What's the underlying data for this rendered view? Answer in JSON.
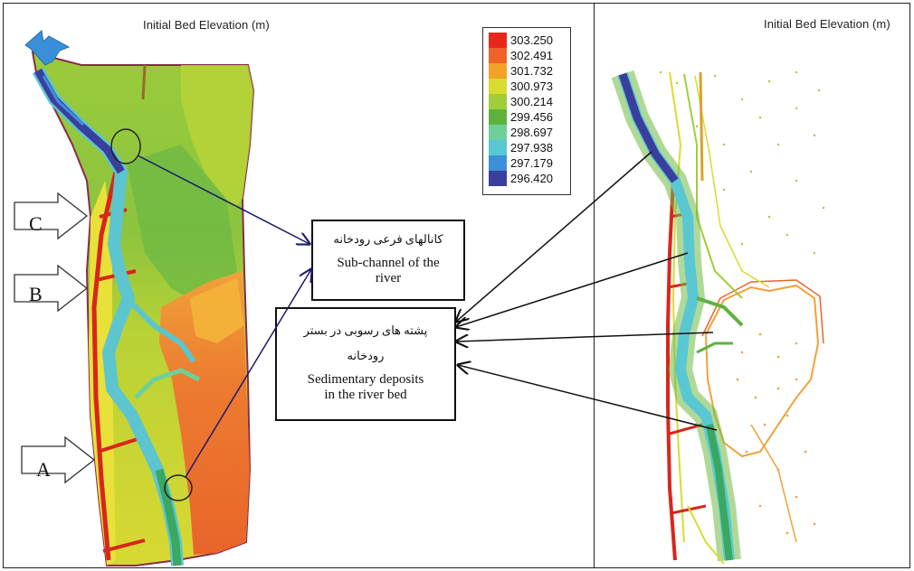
{
  "titles": {
    "left": "Initial Bed Elevation (m)",
    "right": "Initial Bed Elevation (m)"
  },
  "legend": {
    "items": [
      {
        "label": "303.250",
        "color": "#e8271c"
      },
      {
        "label": "302.491",
        "color": "#f0622a"
      },
      {
        "label": "301.732",
        "color": "#f4a227"
      },
      {
        "label": "300.973",
        "color": "#d8dc2e"
      },
      {
        "label": "300.214",
        "color": "#a2cd3a"
      },
      {
        "label": "299.456",
        "color": "#5eb33f"
      },
      {
        "label": "298.697",
        "color": "#6fcf9a"
      },
      {
        "label": "297.938",
        "color": "#5ac8d2"
      },
      {
        "label": "297.179",
        "color": "#3f8fd8"
      },
      {
        "label": "296.420",
        "color": "#3a3f9e"
      }
    ]
  },
  "callouts": {
    "subchannel": {
      "fa": "کانالهای فرعی رودخانه",
      "en_line1": "Sub-channel of the",
      "en_line2": "river"
    },
    "deposits": {
      "fa_line1": "پشته های رسوبی در بستر",
      "fa_line2": "رودخانه",
      "en_line1": "Sedimentary deposits",
      "en_line2": "in the river bed"
    }
  },
  "markers": {
    "c": "C",
    "b": "B",
    "a": "A"
  }
}
